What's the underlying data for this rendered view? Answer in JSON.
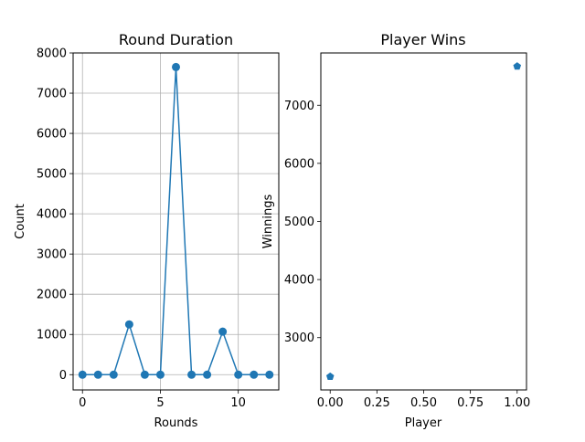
{
  "chart_data": [
    {
      "type": "line",
      "title": "Round Duration",
      "xlabel": "Rounds",
      "ylabel": "Count",
      "grid": true,
      "x": [
        0,
        1,
        2,
        3,
        4,
        5,
        6,
        7,
        8,
        9,
        10,
        11,
        12
      ],
      "values": [
        0,
        0,
        0,
        1250,
        0,
        0,
        7650,
        0,
        0,
        1070,
        0,
        0,
        0
      ],
      "xlim": [
        -0.6,
        12.6
      ],
      "ylim": [
        -380,
        8000
      ],
      "xticks": [
        0,
        5,
        10
      ],
      "yticks": [
        0,
        1000,
        2000,
        3000,
        4000,
        5000,
        6000,
        7000,
        8000
      ],
      "xtick_labels": [
        "0",
        "5",
        "10"
      ],
      "ytick_labels": [
        "0",
        "1000",
        "2000",
        "3000",
        "4000",
        "5000",
        "6000",
        "7000",
        "8000"
      ],
      "marker": "circle",
      "color": "#1f77b4"
    },
    {
      "type": "scatter",
      "title": "Player Wins",
      "xlabel": "Player",
      "ylabel": "Winnings",
      "grid": false,
      "x": [
        0,
        1
      ],
      "values": [
        2330,
        7670
      ],
      "xlim": [
        -0.05,
        1.05
      ],
      "ylim": [
        2100,
        7900
      ],
      "xticks": [
        0,
        0.25,
        0.5,
        0.75,
        1.0
      ],
      "yticks": [
        3000,
        4000,
        5000,
        6000,
        7000
      ],
      "xtick_labels": [
        "0.00",
        "0.25",
        "0.50",
        "0.75",
        "1.00"
      ],
      "ytick_labels": [
        "3000",
        "4000",
        "5000",
        "6000",
        "7000"
      ],
      "marker": "pentagon",
      "color": "#1f77b4"
    }
  ]
}
